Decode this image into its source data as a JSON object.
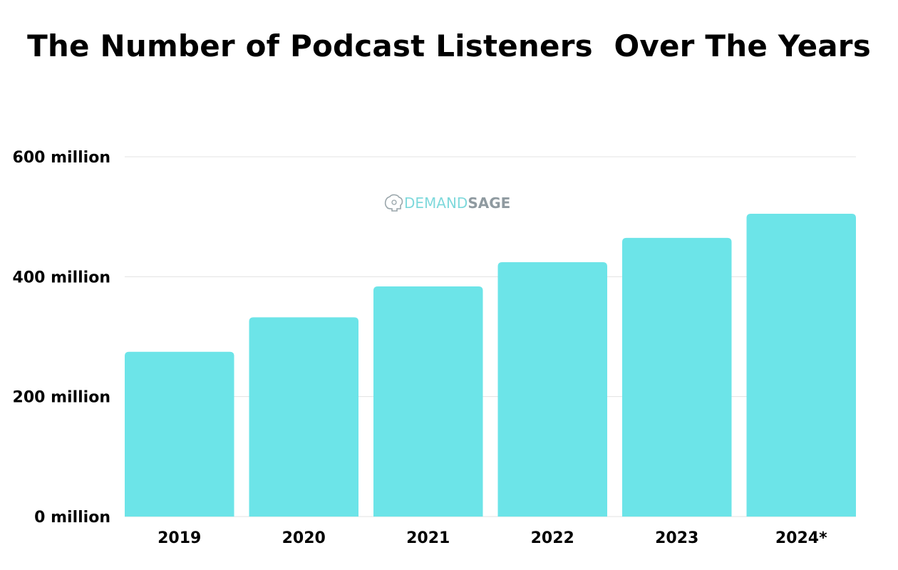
{
  "chart_data": {
    "type": "bar",
    "title": "The Number of Podcast Listeners  Over The Years",
    "categories": [
      "2019",
      "2020",
      "2021",
      "2022",
      "2023",
      "2024*"
    ],
    "values": [
      274.8,
      332.2,
      383.7,
      424.2,
      464.7,
      504.9
    ],
    "ylim": [
      0,
      600
    ],
    "yticks": [
      0,
      200,
      400,
      600
    ],
    "ytick_labels": [
      "0 million",
      "200 million",
      "400 million",
      "600 million"
    ],
    "grid": true,
    "bar_color": "#6ce4e8",
    "grid_color": "#e3e3e3"
  },
  "watermark": {
    "part1": "DEMAND",
    "part2": "SAGE"
  }
}
